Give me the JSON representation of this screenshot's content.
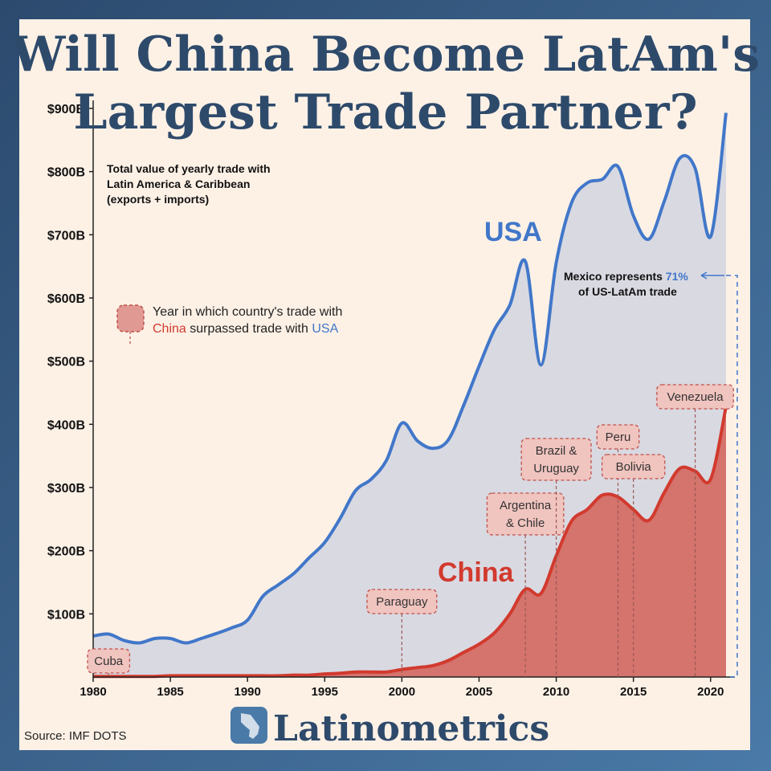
{
  "title_line1": "Will China Become LatAm's",
  "title_line2": "Largest Trade Partner?",
  "subtitle_lines": [
    "Total value of yearly trade with",
    "Latin America & Caribbean",
    "(exports + imports)"
  ],
  "legend": {
    "line1": "Year in which country's trade with",
    "china_word": "China",
    "line2_mid": " surpassed trade with ",
    "usa_word": "USA"
  },
  "note": {
    "prefix": "Mexico represents ",
    "pct": "71%",
    "line2": "of US-LatAm trade"
  },
  "source": "Source: IMF DOTS",
  "brand": "Latinometrics",
  "colors": {
    "usa": "#4177c9",
    "china": "#d23a2e",
    "usa_fill": "#d9d9e2",
    "china_fill": "#d5736d",
    "title": "#2e4a6b",
    "annotation_bg": "#f0c4bf"
  },
  "chart_data": {
    "type": "area",
    "ylabel": "",
    "xlabel": "",
    "xlim": [
      1980,
      2021
    ],
    "ylim": [
      0,
      900
    ],
    "yticks": [
      100,
      200,
      300,
      400,
      500,
      600,
      700,
      800,
      900
    ],
    "ytick_labels": [
      "$100B",
      "$200B",
      "$300B",
      "$400B",
      "$500B",
      "$600B",
      "$700B",
      "$800B",
      "$900B"
    ],
    "xticks": [
      1980,
      1985,
      1990,
      1995,
      2000,
      2005,
      2010,
      2015,
      2020
    ],
    "x": [
      1980,
      1981,
      1982,
      1983,
      1984,
      1985,
      1986,
      1987,
      1988,
      1989,
      1990,
      1991,
      1992,
      1993,
      1994,
      1995,
      1996,
      1997,
      1998,
      1999,
      2000,
      2001,
      2002,
      2003,
      2004,
      2005,
      2006,
      2007,
      2008,
      2009,
      2010,
      2011,
      2012,
      2013,
      2014,
      2015,
      2016,
      2017,
      2018,
      2019,
      2020,
      2021
    ],
    "series": [
      {
        "name": "USA",
        "values": [
          65,
          68,
          58,
          54,
          61,
          61,
          54,
          61,
          69,
          78,
          90,
          128,
          146,
          164,
          189,
          213,
          251,
          295,
          313,
          343,
          402,
          374,
          362,
          375,
          430,
          492,
          550,
          589,
          658,
          494,
          656,
          751,
          782,
          788,
          808,
          730,
          693,
          753,
          821,
          805,
          697,
          893
        ]
      },
      {
        "name": "China",
        "values": [
          1,
          1,
          1,
          1,
          1,
          2,
          2,
          2,
          2,
          2,
          2,
          2,
          2,
          3,
          3,
          5,
          6,
          8,
          8,
          8,
          12,
          15,
          18,
          26,
          39,
          52,
          70,
          100,
          139,
          132,
          192,
          247,
          265,
          288,
          285,
          265,
          248,
          292,
          330,
          326,
          313,
          428
        ]
      }
    ],
    "annotations": [
      {
        "label_lines": [
          "Cuba"
        ],
        "year": 1981
      },
      {
        "label_lines": [
          "Paraguay"
        ],
        "year": 2000
      },
      {
        "label_lines": [
          "Argentina",
          "& Chile"
        ],
        "year": 2008
      },
      {
        "label_lines": [
          "Brazil &",
          "Uruguay"
        ],
        "year": 2010
      },
      {
        "label_lines": [
          "Peru"
        ],
        "year": 2014
      },
      {
        "label_lines": [
          "Bolivia"
        ],
        "year": 2015
      },
      {
        "label_lines": [
          "Venezuela"
        ],
        "year": 2019
      }
    ]
  }
}
